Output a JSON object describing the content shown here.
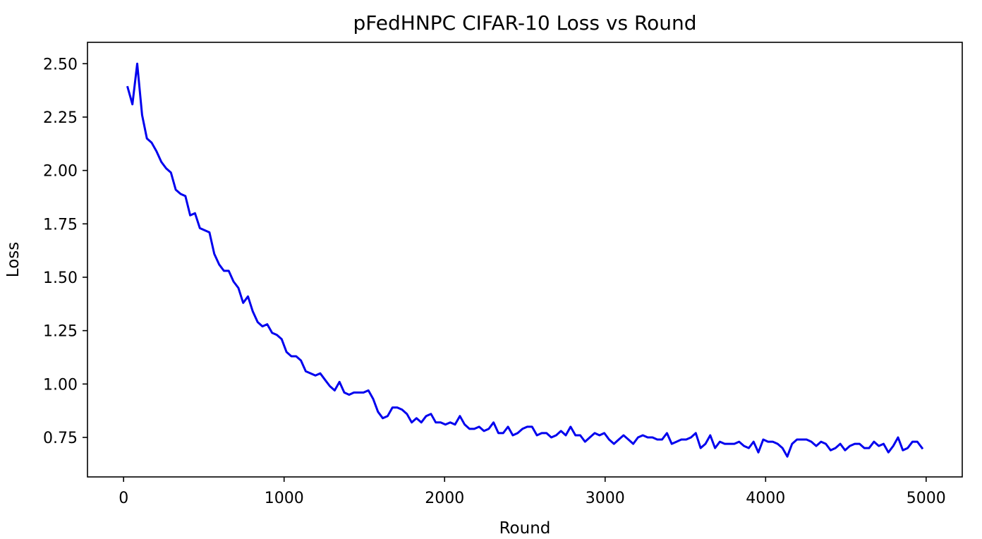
{
  "chart_data": {
    "type": "line",
    "title": "pFedHNPC CIFAR-10 Loss vs Round",
    "xlabel": "Round",
    "ylabel": "Loss",
    "xlim": [
      -225,
      5225
    ],
    "ylim": [
      0.565,
      2.6
    ],
    "xticks": [
      0,
      1000,
      2000,
      3000,
      4000,
      5000
    ],
    "xtick_labels": [
      "0",
      "1000",
      "2000",
      "3000",
      "4000",
      "5000"
    ],
    "yticks": [
      0.75,
      1.0,
      1.25,
      1.5,
      1.75,
      2.0,
      2.25,
      2.5
    ],
    "ytick_labels": [
      "0.75",
      "1.00",
      "1.25",
      "1.50",
      "1.75",
      "2.00",
      "2.25",
      "2.50"
    ],
    "grid": false,
    "series": [
      {
        "color": "#0000ee",
        "x": [
          25,
          55,
          85,
          115,
          145,
          175,
          205,
          235,
          265,
          295,
          325,
          355,
          385,
          415,
          445,
          475,
          505,
          535,
          565,
          595,
          625,
          655,
          685,
          715,
          745,
          775,
          805,
          835,
          865,
          895,
          925,
          955,
          985,
          1015,
          1045,
          1075,
          1105,
          1135,
          1165,
          1195,
          1225,
          1255,
          1285,
          1315,
          1345,
          1375,
          1405,
          1435,
          1465,
          1495,
          1525,
          1555,
          1585,
          1615,
          1645,
          1675,
          1705,
          1735,
          1765,
          1795,
          1825,
          1855,
          1885,
          1915,
          1945,
          1975,
          2005,
          2035,
          2065,
          2095,
          2125,
          2155,
          2185,
          2215,
          2245,
          2275,
          2305,
          2335,
          2365,
          2395,
          2425,
          2455,
          2485,
          2515,
          2545,
          2575,
          2605,
          2635,
          2665,
          2695,
          2725,
          2755,
          2785,
          2815,
          2845,
          2875,
          2905,
          2935,
          2965,
          2995,
          3025,
          3055,
          3085,
          3115,
          3145,
          3175,
          3205,
          3235,
          3265,
          3295,
          3325,
          3355,
          3385,
          3415,
          3445,
          3475,
          3505,
          3535,
          3565,
          3595,
          3625,
          3655,
          3685,
          3715,
          3745,
          3775,
          3805,
          3835,
          3865,
          3895,
          3925,
          3955,
          3985,
          4015,
          4045,
          4075,
          4105,
          4135,
          4165,
          4195,
          4225,
          4255,
          4285,
          4315,
          4345,
          4375,
          4405,
          4435,
          4465,
          4495,
          4525,
          4555,
          4585,
          4615,
          4645,
          4675,
          4705,
          4735,
          4765,
          4795,
          4825,
          4855,
          4885,
          4915,
          4945,
          4975
        ],
        "values": [
          2.39,
          2.31,
          2.5,
          2.26,
          2.15,
          2.13,
          2.09,
          2.04,
          2.01,
          1.99,
          1.91,
          1.89,
          1.88,
          1.79,
          1.8,
          1.73,
          1.72,
          1.71,
          1.61,
          1.56,
          1.53,
          1.53,
          1.48,
          1.45,
          1.38,
          1.41,
          1.34,
          1.29,
          1.27,
          1.28,
          1.24,
          1.23,
          1.21,
          1.15,
          1.13,
          1.13,
          1.11,
          1.06,
          1.05,
          1.04,
          1.05,
          1.02,
          0.99,
          0.97,
          1.01,
          0.96,
          0.95,
          0.96,
          0.96,
          0.96,
          0.97,
          0.93,
          0.87,
          0.84,
          0.85,
          0.89,
          0.89,
          0.88,
          0.86,
          0.82,
          0.84,
          0.82,
          0.85,
          0.86,
          0.82,
          0.82,
          0.81,
          0.82,
          0.81,
          0.85,
          0.81,
          0.79,
          0.79,
          0.8,
          0.78,
          0.79,
          0.82,
          0.77,
          0.77,
          0.8,
          0.76,
          0.77,
          0.79,
          0.8,
          0.8,
          0.76,
          0.77,
          0.77,
          0.75,
          0.76,
          0.78,
          0.76,
          0.8,
          0.76,
          0.76,
          0.73,
          0.75,
          0.77,
          0.76,
          0.77,
          0.74,
          0.72,
          0.74,
          0.76,
          0.74,
          0.72,
          0.75,
          0.76,
          0.75,
          0.75,
          0.74,
          0.74,
          0.77,
          0.72,
          0.73,
          0.74,
          0.74,
          0.75,
          0.77,
          0.7,
          0.72,
          0.76,
          0.7,
          0.73,
          0.72,
          0.72,
          0.72,
          0.73,
          0.71,
          0.7,
          0.73,
          0.68,
          0.74,
          0.73,
          0.73,
          0.72,
          0.7,
          0.66,
          0.72,
          0.74,
          0.74,
          0.74,
          0.73,
          0.71,
          0.73,
          0.72,
          0.69,
          0.7,
          0.72,
          0.69,
          0.71,
          0.72,
          0.72,
          0.7,
          0.7,
          0.73,
          0.71,
          0.72,
          0.68,
          0.71,
          0.75,
          0.69,
          0.7,
          0.73,
          0.73,
          0.7
        ]
      }
    ]
  }
}
